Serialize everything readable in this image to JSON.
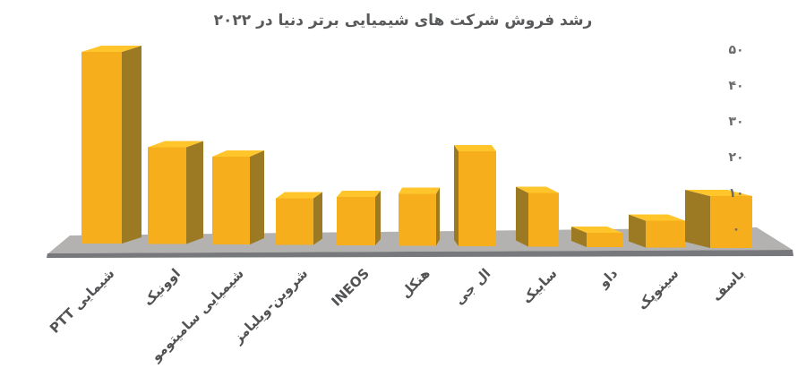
{
  "chart_data": {
    "type": "bar",
    "style": "3d-perspective-columns",
    "title": "رشد فروش شرکت های شیمیایی برتر دنیا در ۲۰۲۲",
    "categories": [
      "شیمایی PTT",
      "اوونیک",
      "شیمیایی سامیتومو",
      "شروین-ویلیامز",
      "INEOS",
      "هنکل",
      "ال جی",
      "سابیک",
      "داو",
      "سینوپک",
      "باسف"
    ],
    "values": [
      53.5,
      27,
      24.5,
      13,
      13.5,
      14.5,
      26.5,
      15,
      4,
      7.5,
      14.5
    ],
    "xlabel": "",
    "ylabel": "",
    "ylim": [
      0,
      50
    ],
    "grid": false,
    "legend": "none",
    "value_axis_side": "right",
    "y_ticks": [
      {
        "label": "۵۰",
        "value": 50
      },
      {
        "label": "۴۰",
        "value": 40
      },
      {
        "label": "۳۰",
        "value": 30
      },
      {
        "label": "۲۰",
        "value": 20
      },
      {
        "label": "۱۰",
        "value": 10
      },
      {
        "label": "۰",
        "value": 0
      }
    ]
  },
  "colors": {
    "background": "#ffffff",
    "bar_front": "#F6AE1C",
    "bar_top": "#FFC52B",
    "bar_side": "#9B7A23",
    "floor": "#B3B2B0",
    "floor_edge": "#77787B",
    "title_text": "#58595B",
    "axis_text": "#696A6C",
    "category_text": "#515254"
  }
}
